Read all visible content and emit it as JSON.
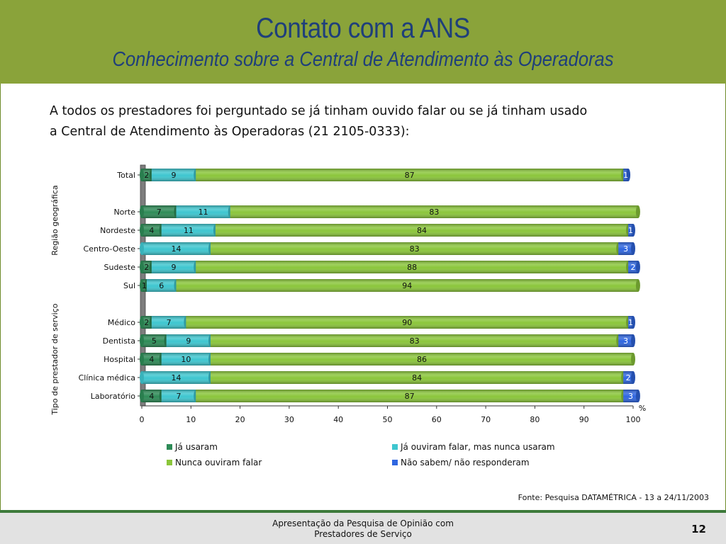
{
  "header": {
    "title": "Contato com a ANS",
    "subtitle": "Conhecimento sobre a Central de Atendimento às Operadoras"
  },
  "intro": {
    "line1": "A todos os prestadores foi perguntado se já tinham ouvido falar ou se já tinham usado",
    "line2": "a Central de Atendimento às Operadoras (21 2105-0333):"
  },
  "colors": {
    "header_bg": "#8aa33a",
    "title": "#1f3f7a",
    "series": [
      "#2e8b57",
      "#3ec6cf",
      "#8bc63b",
      "#2f66e0"
    ]
  },
  "chart_data": {
    "type": "bar",
    "orientation": "horizontal",
    "stacked": true,
    "categories": [
      "Total",
      "Norte",
      "Nordeste",
      "Centro-Oeste",
      "Sudeste",
      "Sul",
      "Médico",
      "Dentista",
      "Hospital",
      "Clínica médica",
      "Laboratório"
    ],
    "groups": [
      {
        "label": "Região geográfica",
        "categories": [
          "Norte",
          "Nordeste",
          "Centro-Oeste",
          "Sudeste",
          "Sul"
        ]
      },
      {
        "label": "Tipo de prestador de serviço",
        "categories": [
          "Médico",
          "Dentista",
          "Hospital",
          "Clínica médica",
          "Laboratório"
        ]
      }
    ],
    "series": [
      {
        "name": "Já usaram",
        "color": "#2e8b57",
        "values": [
          2,
          7,
          4,
          0,
          2,
          1,
          2,
          5,
          4,
          0,
          4
        ]
      },
      {
        "name": "Já ouviram falar, mas nunca usaram",
        "color": "#3ec6cf",
        "values": [
          9,
          11,
          11,
          14,
          9,
          6,
          7,
          9,
          10,
          14,
          7
        ]
      },
      {
        "name": "Nunca ouviram falar",
        "color": "#8bc63b",
        "values": [
          87,
          83,
          84,
          83,
          88,
          94,
          90,
          83,
          86,
          84,
          87
        ]
      },
      {
        "name": "Não sabem/ não responderam",
        "color": "#2f66e0",
        "values": [
          1,
          0,
          1,
          3,
          2,
          0,
          1,
          3,
          0,
          2,
          3
        ]
      }
    ],
    "xlim": [
      0,
      100
    ],
    "xticks": [
      0,
      10,
      20,
      30,
      40,
      50,
      60,
      70,
      80,
      90,
      100
    ],
    "unit_label": "%",
    "legend": "bottom"
  },
  "source": "Fonte: Pesquisa DATAMÉTRICA - 13 a 24/11/2003",
  "footer": {
    "line1": "Apresentação da Pesquisa de Opinião com",
    "line2": "Prestadores de Serviço",
    "page_number": "12"
  }
}
